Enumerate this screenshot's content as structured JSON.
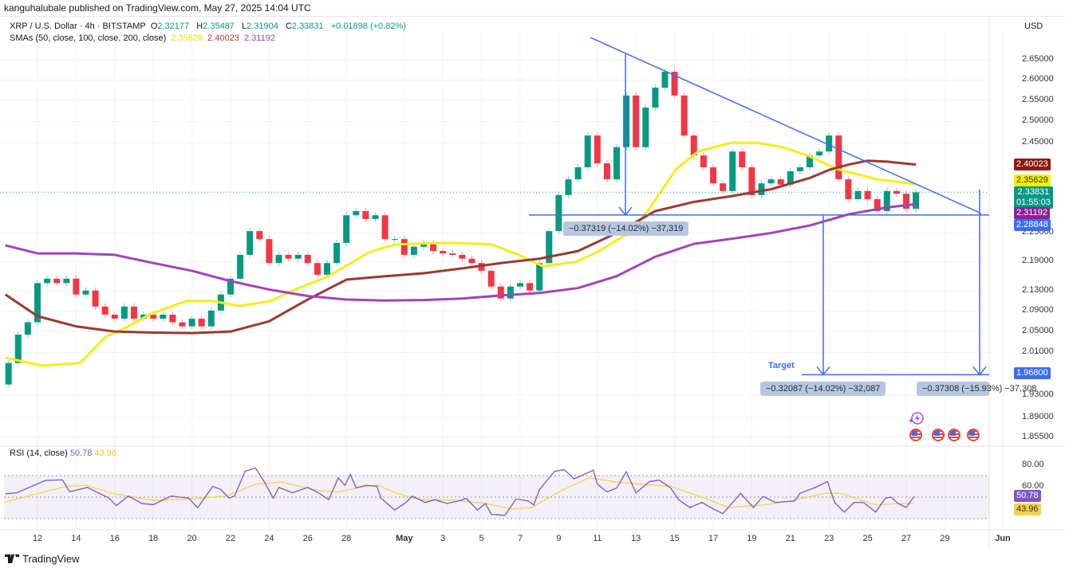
{
  "header": {
    "publisher": "kanguhalubale published on TradingView.com, May 27, 2025 14:04 UTC"
  },
  "legend": {
    "symbol": "XRP / U.S. Dollar · 4h · BITSTAMP",
    "o_label": "O",
    "o": "2.32177",
    "h_label": "H",
    "h": "2.35487",
    "l_label": "L",
    "l": "2.31904",
    "c_label": "C",
    "c": "2.33831",
    "change": "+0.01898 (+0.82%)",
    "sma_label": "SMAs (50, close, 100, close, 200, close)",
    "sma50": "2.35629",
    "sma100": "2.40023",
    "sma200": "2.31192"
  },
  "currency": "USD",
  "price_tags": {
    "sma100": "2.40023",
    "sma50": "2.35629",
    "last": "2.33831",
    "countdown": "01:55:03",
    "sma200": "2.31192",
    "support": "2.28848",
    "target": "1.96800"
  },
  "colors": {
    "up": "#089981",
    "down": "#f23645",
    "sma50": "#f2ee1a",
    "sma100": "#9a3a30",
    "sma200": "#a044b8",
    "drawing": "#3d6cf5",
    "rsi": "#7e57c2",
    "rsi_ma": "#f5d24a"
  },
  "annotations": {
    "measure_top": "−0.37319 (−14.02%) −37,319",
    "measure_left": "−0.32087 (−14.02%) −32,087",
    "measure_right": "−0.37308 (−15.93%) −37,308",
    "target_label": "Target"
  },
  "rsi": {
    "label": "RSI (14, close)",
    "value": "50.78",
    "ma": "43.96",
    "tags": {
      "value": "50.78",
      "ma": "43.96"
    }
  },
  "footer": {
    "brand": "TradingView"
  },
  "chart_data": {
    "type": "candlestick",
    "scale": "log",
    "price_axis": {
      "ticks": [
        2.65,
        2.6,
        2.55,
        2.5,
        2.45,
        2.25,
        2.19,
        2.13,
        2.09,
        2.05,
        2.01,
        1.93,
        1.89,
        1.855
      ],
      "tick_labels": [
        "2.65000",
        "2.60000",
        "2.55000",
        "2.50000",
        "2.45000",
        "2.25000",
        "2.19000",
        "2.13000",
        "2.09000",
        "2.05000",
        "2.01000",
        "1.93000",
        "1.89000",
        "1.85500"
      ],
      "range": [
        1.84,
        2.72
      ]
    },
    "time_axis": [
      [
        "12",
        "2025-04-12"
      ],
      [
        "14",
        "2025-04-14"
      ],
      [
        "16",
        "2025-04-16"
      ],
      [
        "18",
        "2025-04-18"
      ],
      [
        "20",
        "2025-04-20"
      ],
      [
        "22",
        "2025-04-22"
      ],
      [
        "24",
        "2025-04-24"
      ],
      [
        "26",
        "2025-04-26"
      ],
      [
        "28",
        "2025-04-28"
      ],
      [
        "May",
        "2025-05-01"
      ],
      [
        "3",
        "2025-05-03"
      ],
      [
        "5",
        "2025-05-05"
      ],
      [
        "7",
        "2025-05-07"
      ],
      [
        "9",
        "2025-05-09"
      ],
      [
        "11",
        "2025-05-11"
      ],
      [
        "13",
        "2025-05-13"
      ],
      [
        "15",
        "2025-05-15"
      ],
      [
        "17",
        "2025-05-17"
      ],
      [
        "19",
        "2025-05-19"
      ],
      [
        "21",
        "2025-05-21"
      ],
      [
        "23",
        "2025-05-23"
      ],
      [
        "25",
        "2025-05-25"
      ],
      [
        "27",
        "2025-05-27"
      ],
      [
        "29",
        "2025-05-29"
      ],
      [
        "Jun",
        "2025-06-01"
      ]
    ],
    "candles": {
      "start": "2025-04-10T12",
      "step_hours": 12,
      "close": [
        1.99,
        2.044,
        2.068,
        2.146,
        2.155,
        2.146,
        2.155,
        2.123,
        2.131,
        2.099,
        2.083,
        2.075,
        2.099,
        2.075,
        2.083,
        2.075,
        2.083,
        2.068,
        2.06,
        2.075,
        2.06,
        2.091,
        2.123,
        2.155,
        2.204,
        2.254,
        2.237,
        2.187,
        2.204,
        2.196,
        2.204,
        2.187,
        2.163,
        2.187,
        2.229,
        2.288,
        2.297,
        2.28,
        2.288,
        2.237,
        2.237,
        2.204,
        2.221,
        2.229,
        2.212,
        2.207,
        2.204,
        2.196,
        2.187,
        2.171,
        2.139,
        2.115,
        2.139,
        2.146,
        2.131,
        2.187,
        2.254,
        2.332,
        2.367,
        2.394,
        2.467,
        2.403,
        2.367,
        2.44,
        2.562,
        2.44,
        2.533,
        2.581,
        2.62,
        2.562,
        2.467,
        2.421,
        2.394,
        2.358,
        2.341,
        2.43,
        2.394,
        2.332,
        2.358,
        2.367,
        2.355,
        2.385,
        2.394,
        2.421,
        2.43,
        2.467,
        2.367,
        2.323,
        2.341,
        2.323,
        2.297,
        2.341,
        2.335,
        2.302,
        2.338
      ]
    },
    "series": [
      {
        "name": "SMA 50",
        "color_key": "sma50",
        "points": [
          [
            "2025-04-10T08",
            2.0
          ],
          [
            "2025-04-12T06",
            1.985
          ],
          [
            "2025-04-14T05",
            1.99
          ],
          [
            "2025-04-15T13",
            2.04
          ],
          [
            "2025-04-16T17",
            2.06
          ],
          [
            "2025-04-17T19",
            2.083
          ],
          [
            "2025-04-19T17",
            2.11
          ],
          [
            "2025-04-21T02",
            2.11
          ],
          [
            "2025-04-22T11",
            2.1
          ],
          [
            "2025-04-24T02",
            2.11
          ],
          [
            "2025-04-25T01",
            2.128
          ],
          [
            "2025-04-27T02",
            2.16
          ],
          [
            "2025-04-29T05",
            2.21
          ],
          [
            "2025-04-30T14",
            2.226
          ],
          [
            "2025-05-03T10",
            2.229
          ],
          [
            "2025-05-05T12",
            2.226
          ],
          [
            "2025-05-06T22",
            2.204
          ],
          [
            "2025-05-08T05",
            2.18
          ],
          [
            "2025-05-09T22",
            2.19
          ],
          [
            "2025-05-11T00",
            2.21
          ],
          [
            "2025-05-12T19",
            2.254
          ],
          [
            "2025-05-13T17",
            2.303
          ],
          [
            "2025-05-15T02",
            2.39
          ],
          [
            "2025-05-16T05",
            2.43
          ],
          [
            "2025-05-17T22",
            2.45
          ],
          [
            "2025-05-19T07",
            2.45
          ],
          [
            "2025-05-20T14",
            2.44
          ],
          [
            "2025-05-22T00",
            2.419
          ],
          [
            "2025-05-23T10",
            2.39
          ],
          [
            "2025-05-25T12",
            2.367
          ],
          [
            "2025-05-27T12",
            2.356
          ]
        ]
      },
      {
        "name": "SMA 100",
        "color_key": "sma100",
        "points": [
          [
            "2025-04-10T08",
            2.123
          ],
          [
            "2025-04-12T00",
            2.08
          ],
          [
            "2025-04-14T00",
            2.06
          ],
          [
            "2025-04-16T00",
            2.05
          ],
          [
            "2025-04-18T00",
            2.048
          ],
          [
            "2025-04-20T00",
            2.047
          ],
          [
            "2025-04-22T00",
            2.05
          ],
          [
            "2025-04-24T00",
            2.07
          ],
          [
            "2025-04-26T00",
            2.113
          ],
          [
            "2025-04-28T00",
            2.153
          ],
          [
            "2025-04-30T00",
            2.16
          ],
          [
            "2025-05-02T00",
            2.166
          ],
          [
            "2025-05-04T00",
            2.176
          ],
          [
            "2025-05-06T00",
            2.187
          ],
          [
            "2025-05-08T00",
            2.196
          ],
          [
            "2025-05-10T00",
            2.212
          ],
          [
            "2025-05-12T00",
            2.25
          ],
          [
            "2025-05-14T00",
            2.297
          ],
          [
            "2025-05-16T00",
            2.317
          ],
          [
            "2025-05-18T00",
            2.33
          ],
          [
            "2025-05-20T00",
            2.345
          ],
          [
            "2025-05-22T00",
            2.37
          ],
          [
            "2025-05-23T00",
            2.388
          ],
          [
            "2025-05-24T00",
            2.4
          ],
          [
            "2025-05-25T00",
            2.409
          ],
          [
            "2025-05-26T00",
            2.407
          ],
          [
            "2025-05-27T12",
            2.4
          ]
        ]
      },
      {
        "name": "SMA 200",
        "color_key": "sma200",
        "points": [
          [
            "2025-04-10T08",
            2.224
          ],
          [
            "2025-04-12T00",
            2.207
          ],
          [
            "2025-04-14T00",
            2.207
          ],
          [
            "2025-04-16T00",
            2.204
          ],
          [
            "2025-04-18T00",
            2.187
          ],
          [
            "2025-04-20T00",
            2.171
          ],
          [
            "2025-04-22T00",
            2.15
          ],
          [
            "2025-04-24T00",
            2.133
          ],
          [
            "2025-04-26T00",
            2.12
          ],
          [
            "2025-04-28T00",
            2.113
          ],
          [
            "2025-04-30T00",
            2.111
          ],
          [
            "2025-05-02T00",
            2.112
          ],
          [
            "2025-05-04T00",
            2.115
          ],
          [
            "2025-05-06T00",
            2.121
          ],
          [
            "2025-05-08T00",
            2.126
          ],
          [
            "2025-05-10T00",
            2.136
          ],
          [
            "2025-05-12T00",
            2.16
          ],
          [
            "2025-05-14T00",
            2.2
          ],
          [
            "2025-05-16T00",
            2.227
          ],
          [
            "2025-05-18T00",
            2.238
          ],
          [
            "2025-05-20T00",
            2.25
          ],
          [
            "2025-05-22T00",
            2.266
          ],
          [
            "2025-05-24T00",
            2.29
          ],
          [
            "2025-05-26T00",
            2.305
          ],
          [
            "2025-05-27T12",
            2.312
          ]
        ]
      }
    ],
    "rsi": {
      "axis_ticks": [
        80,
        60
      ],
      "bands": [
        70,
        50,
        30
      ],
      "line": [
        [
          "2025-04-10T08",
          53
        ],
        [
          "2025-04-10T22",
          54
        ],
        [
          "2025-04-12T10",
          65.5
        ],
        [
          "2025-04-13T07",
          66
        ],
        [
          "2025-04-13T16",
          55
        ],
        [
          "2025-04-14T14",
          59
        ],
        [
          "2025-04-15T17",
          49
        ],
        [
          "2025-04-16T02",
          42
        ],
        [
          "2025-04-16T17",
          51
        ],
        [
          "2025-04-17T10",
          44
        ],
        [
          "2025-04-18T00",
          43
        ],
        [
          "2025-04-18T22",
          51
        ],
        [
          "2025-04-19T20",
          49
        ],
        [
          "2025-04-20T07",
          40
        ],
        [
          "2025-04-21T02",
          60
        ],
        [
          "2025-04-21T12",
          57
        ],
        [
          "2025-04-21T22",
          49
        ],
        [
          "2025-04-22T05",
          51
        ],
        [
          "2025-04-22T18",
          74
        ],
        [
          "2025-04-23T07",
          77
        ],
        [
          "2025-04-23T19",
          63
        ],
        [
          "2025-04-24T05",
          49
        ],
        [
          "2025-04-24T12",
          59
        ],
        [
          "2025-04-25T05",
          54
        ],
        [
          "2025-04-26T00",
          59
        ],
        [
          "2025-04-26T14",
          53.6
        ],
        [
          "2025-04-27T02",
          47.6
        ],
        [
          "2025-04-27T14",
          68
        ],
        [
          "2025-04-27T22",
          61
        ],
        [
          "2025-04-28T05",
          71
        ],
        [
          "2025-04-28T12",
          58.5
        ],
        [
          "2025-04-29T00",
          61
        ],
        [
          "2025-04-29T14",
          60
        ],
        [
          "2025-04-29T19",
          49
        ],
        [
          "2025-04-30T12",
          38
        ],
        [
          "2025-05-01T02",
          45
        ],
        [
          "2025-05-01T10",
          51
        ],
        [
          "2025-05-02T02",
          45
        ],
        [
          "2025-05-02T14",
          47.6
        ],
        [
          "2025-05-03T05",
          44
        ],
        [
          "2025-05-03T19",
          46.4
        ],
        [
          "2025-05-04T05",
          48.8
        ],
        [
          "2025-05-04T19",
          38
        ],
        [
          "2025-05-05T05",
          44
        ],
        [
          "2025-05-05T12",
          34
        ],
        [
          "2025-05-06T05",
          33
        ],
        [
          "2025-05-06T19",
          48.3
        ],
        [
          "2025-05-07T10",
          46.4
        ],
        [
          "2025-05-07T17",
          42.7
        ],
        [
          "2025-05-08T00",
          57
        ],
        [
          "2025-05-08T19",
          74
        ],
        [
          "2025-05-09T07",
          75.5
        ],
        [
          "2025-05-09T19",
          67
        ],
        [
          "2025-05-10T19",
          75
        ],
        [
          "2025-05-11T00",
          62
        ],
        [
          "2025-05-11T12",
          54.8
        ],
        [
          "2025-05-12T00",
          58.5
        ],
        [
          "2025-05-12T12",
          73.5
        ],
        [
          "2025-05-13T00",
          54
        ],
        [
          "2025-05-13T17",
          64.5
        ],
        [
          "2025-05-14T05",
          65.8
        ],
        [
          "2025-05-14T19",
          58.5
        ],
        [
          "2025-05-15T05",
          47.6
        ],
        [
          "2025-05-15T19",
          40.3
        ],
        [
          "2025-05-16T10",
          45
        ],
        [
          "2025-05-17T00",
          39
        ],
        [
          "2025-05-17T12",
          34.7
        ],
        [
          "2025-05-18T02",
          46.4
        ],
        [
          "2025-05-18T10",
          53.6
        ],
        [
          "2025-05-19T02",
          40.3
        ],
        [
          "2025-05-19T14",
          50.7
        ],
        [
          "2025-05-20T05",
          45
        ],
        [
          "2025-05-21T05",
          46.4
        ],
        [
          "2025-05-21T12",
          53.6
        ],
        [
          "2025-05-22T07",
          59
        ],
        [
          "2025-05-22T22",
          64.5
        ],
        [
          "2025-05-23T07",
          45
        ],
        [
          "2025-05-23T19",
          36
        ],
        [
          "2025-05-24T07",
          45
        ],
        [
          "2025-05-24T19",
          45
        ],
        [
          "2025-05-25T10",
          36
        ],
        [
          "2025-05-25T22",
          48.8
        ],
        [
          "2025-05-26T05",
          50
        ],
        [
          "2025-05-26T14",
          44
        ],
        [
          "2025-05-27T00",
          40.3
        ],
        [
          "2025-05-27T10",
          50.78
        ]
      ],
      "ma": [
        [
          "2025-04-10T08",
          45.5
        ],
        [
          "2025-04-12T04",
          54
        ],
        [
          "2025-04-13T12",
          60
        ],
        [
          "2025-04-14T12",
          61
        ],
        [
          "2025-04-16T00",
          53
        ],
        [
          "2025-04-18T00",
          47
        ],
        [
          "2025-04-19T17",
          48
        ],
        [
          "2025-04-21T19",
          51
        ],
        [
          "2025-04-23T07",
          62
        ],
        [
          "2025-04-24T14",
          64
        ],
        [
          "2025-04-26T14",
          56
        ],
        [
          "2025-04-27T14",
          54.8
        ],
        [
          "2025-04-28T14",
          58.5
        ],
        [
          "2025-04-29T14",
          61.4
        ],
        [
          "2025-04-30T14",
          53.6
        ],
        [
          "2025-05-01T19",
          47.6
        ],
        [
          "2025-05-03T14",
          47
        ],
        [
          "2025-05-05T05",
          44
        ],
        [
          "2025-05-06T14",
          39
        ],
        [
          "2025-05-07T14",
          40.3
        ],
        [
          "2025-05-09T00",
          54.8
        ],
        [
          "2025-05-10T14",
          68
        ],
        [
          "2025-05-11T19",
          64.5
        ],
        [
          "2025-05-13T05",
          62
        ],
        [
          "2025-05-14T19",
          60
        ],
        [
          "2025-05-16T10",
          50
        ],
        [
          "2025-05-17T19",
          40.3
        ],
        [
          "2025-05-19T14",
          42.7
        ],
        [
          "2025-05-21T00",
          46.4
        ],
        [
          "2025-05-22T19",
          53.6
        ],
        [
          "2025-05-23T14",
          53.6
        ],
        [
          "2025-05-25T10",
          42.7
        ],
        [
          "2025-05-26T14",
          44
        ],
        [
          "2025-05-27T10",
          43.96
        ]
      ]
    }
  }
}
